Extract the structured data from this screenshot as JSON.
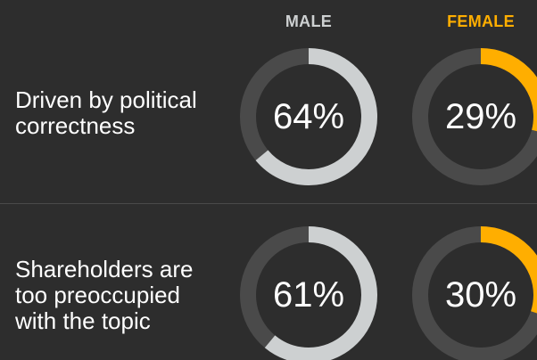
{
  "chart_data": {
    "type": "donut",
    "columns": [
      "MALE",
      "FEMALE"
    ],
    "rows": [
      {
        "label": "Driven by political\ncorrectness",
        "values": [
          64,
          29
        ],
        "value_labels": [
          "64%",
          "29%"
        ]
      },
      {
        "label": "Shareholders are\ntoo preoccupied\nwith the topic",
        "values": [
          61,
          30
        ],
        "value_labels": [
          "61%",
          "30%"
        ]
      }
    ],
    "colors": {
      "background": "#2d2d2d",
      "track": "#4a4a4a",
      "male": "#cdd0d1",
      "female": "#ffae00",
      "text": "#ffffff",
      "divider": "#4a4a4a"
    }
  }
}
